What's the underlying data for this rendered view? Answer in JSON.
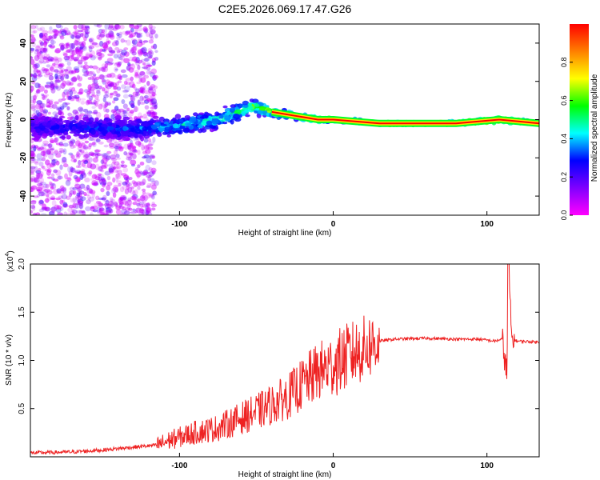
{
  "title": "C2E5.2026.069.17.47.G26",
  "colors": {
    "spectral": [
      "#ff00ff",
      "#7f00ff",
      "#0000ff",
      "#00ffff",
      "#00ff00",
      "#ffff00",
      "#ff7f00",
      "#ff0000"
    ],
    "snr_line": "#ee2222"
  },
  "chart_data": [
    {
      "type": "heatmap",
      "title": "C2E5.2026.069.17.47.G26",
      "xlabel": "Height of straight line (km)",
      "ylabel": "Frequency (Hz)",
      "xlim": [
        -197,
        134
      ],
      "ylim": [
        -50,
        50
      ],
      "xticks": [
        -100,
        0,
        100
      ],
      "yticks": [
        -40,
        -20,
        0,
        20,
        40
      ],
      "colorbar": {
        "label": "Normalized spectral amplitude",
        "range": [
          0,
          1
        ],
        "ticks": [
          "0.0",
          "0.2",
          "0.4",
          "0.6",
          "0.8"
        ],
        "tick_values": [
          0,
          0.2,
          0.4,
          0.6,
          0.8
        ]
      },
      "ridge": [
        {
          "x": -197,
          "freq": -4,
          "amp": 0.25,
          "spread": 9
        },
        {
          "x": -160,
          "freq": -4,
          "amp": 0.3,
          "spread": 8
        },
        {
          "x": -130,
          "freq": -5,
          "amp": 0.35,
          "spread": 7
        },
        {
          "x": -100,
          "freq": -3,
          "amp": 0.45,
          "spread": 6
        },
        {
          "x": -75,
          "freq": 0,
          "amp": 0.5,
          "spread": 6
        },
        {
          "x": -52,
          "freq": 7,
          "amp": 0.6,
          "spread": 5
        },
        {
          "x": -40,
          "freq": 4,
          "amp": 0.7,
          "spread": 3
        },
        {
          "x": -25,
          "freq": 2,
          "amp": 0.8,
          "spread": 2
        },
        {
          "x": -10,
          "freq": 0,
          "amp": 0.85,
          "spread": 2
        },
        {
          "x": 0,
          "freq": 0,
          "amp": 0.9,
          "spread": 1.5
        },
        {
          "x": 30,
          "freq": -2,
          "amp": 0.95,
          "spread": 1.2
        },
        {
          "x": 80,
          "freq": -2,
          "amp": 0.98,
          "spread": 1.2
        },
        {
          "x": 108,
          "freq": 0,
          "amp": 0.9,
          "spread": 2
        },
        {
          "x": 134,
          "freq": -2,
          "amp": 1.0,
          "spread": 1.2
        }
      ],
      "noise_band": {
        "x_from": -197,
        "x_to": -115,
        "freq_range": [
          -50,
          50
        ]
      }
    },
    {
      "type": "line",
      "xlabel": "Height of straight line (km)",
      "ylabel": "SNR (10 * v/v)",
      "y_scale_label": "(x10",
      "y_scale_exponent": "4",
      "xlim": [
        -197,
        134
      ],
      "ylim": [
        0,
        2.0
      ],
      "xticks": [
        -100,
        0,
        100
      ],
      "yticks": [
        0.5,
        1.0,
        1.5,
        2.0
      ],
      "series": [
        {
          "name": "SNR",
          "x": [
            -197,
            -170,
            -150,
            -130,
            -115,
            -105,
            -90,
            -75,
            -60,
            -45,
            -30,
            -20,
            -10,
            0,
            10,
            20,
            30,
            40,
            60,
            80,
            95,
            105,
            110,
            113,
            114,
            116,
            120,
            134
          ],
          "y": [
            0.04,
            0.05,
            0.07,
            0.1,
            0.12,
            0.18,
            0.25,
            0.3,
            0.4,
            0.5,
            0.62,
            0.75,
            0.88,
            0.95,
            1.05,
            1.12,
            1.2,
            1.22,
            1.23,
            1.22,
            1.22,
            1.2,
            1.22,
            0.85,
            2.0,
            1.22,
            1.2,
            1.19
          ]
        }
      ]
    }
  ]
}
